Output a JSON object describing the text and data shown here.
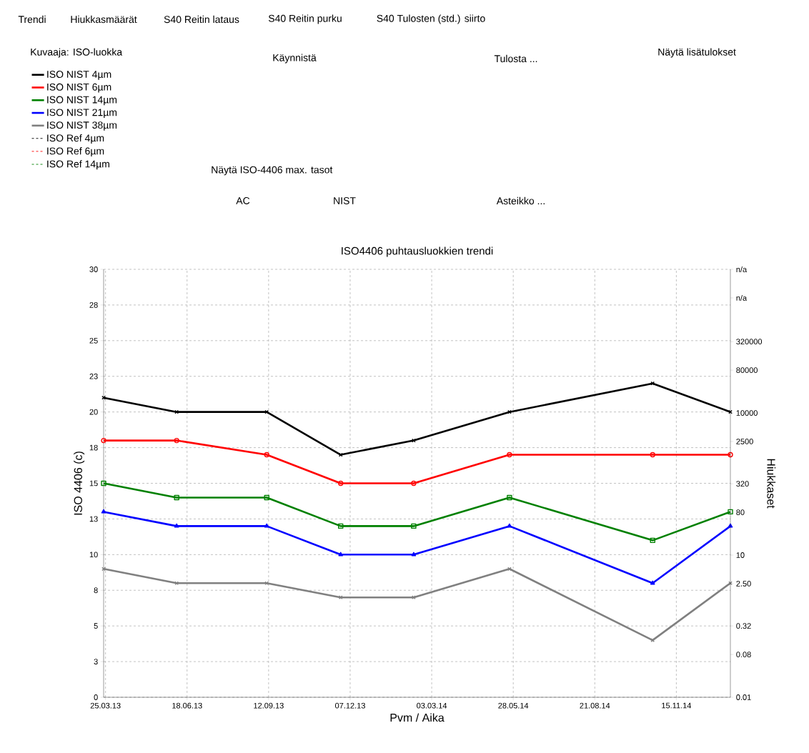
{
  "chart_data": {
    "type": "line",
    "title": "ISO4406 puhtausluokkien trendi",
    "xlabel": "Pvm / Aika",
    "ylabel": "ISO 4406 (c)",
    "y2label": "Hiukkaset",
    "x": [
      "2013-03-23",
      "2013-06-08",
      "2013-09-11",
      "2013-11-28",
      "2014-02-13",
      "2014-05-25",
      "2014-10-23",
      "2015-01-13"
    ],
    "series": [
      {
        "name": "ISO NIST 4µm",
        "color": "#000000",
        "marker": "cross",
        "line_style": "solid",
        "values": [
          21,
          20,
          20,
          17,
          18,
          20,
          22,
          20
        ]
      },
      {
        "name": "ISO NIST 6µm",
        "color": "#ff0000",
        "marker": "circle",
        "line_style": "solid",
        "values": [
          18,
          18,
          17,
          15,
          15,
          17,
          17,
          17
        ]
      },
      {
        "name": "ISO NIST 14µm",
        "color": "#008000",
        "marker": "square",
        "line_style": "solid",
        "values": [
          15,
          14,
          14,
          12,
          12,
          14,
          11,
          13
        ]
      },
      {
        "name": "ISO NIST 21µm",
        "color": "#0000ff",
        "marker": "triangle",
        "line_style": "solid",
        "values": [
          13,
          12,
          12,
          10,
          10,
          12,
          8,
          12
        ]
      },
      {
        "name": "ISO NIST 38µm",
        "color": "#808080",
        "marker": "cross",
        "line_style": "solid",
        "values": [
          9,
          8,
          8,
          7,
          7,
          9,
          4,
          8
        ]
      },
      {
        "name": "ISO Ref 4µm",
        "color": "#000000",
        "marker": "none",
        "line_style": "dashed",
        "values": [
          null,
          null,
          null,
          null,
          null,
          null,
          null,
          null
        ]
      },
      {
        "name": "ISO Ref 6µm",
        "color": "#ff0000",
        "marker": "none",
        "line_style": "dashed",
        "values": [
          null,
          null,
          null,
          null,
          null,
          null,
          null,
          null
        ]
      },
      {
        "name": "ISO Ref 14µm",
        "color": "#008000",
        "marker": "none",
        "line_style": "dashed",
        "values": [
          null,
          null,
          null,
          null,
          null,
          null,
          null,
          null
        ]
      }
    ],
    "xlim": [
      "2013-03-23",
      "2015-01-13"
    ],
    "xticks": [
      {
        "value": "2013-03-25",
        "label": "25.03.13"
      },
      {
        "value": "2013-06-19",
        "label": "18.06.13"
      },
      {
        "value": "2013-09-13",
        "label": "12.09.13"
      },
      {
        "value": "2013-12-08",
        "label": "07.12.13"
      },
      {
        "value": "2014-03-04",
        "label": "03.03.14"
      },
      {
        "value": "2014-05-29",
        "label": "28.05.14"
      },
      {
        "value": "2014-08-23",
        "label": "21.08.14"
      },
      {
        "value": "2014-11-17",
        "label": "15.11.14"
      }
    ],
    "ylim": [
      0,
      30
    ],
    "yticks": [
      0,
      {
        "value": 2.5,
        "label": "3"
      },
      5,
      {
        "value": 7.5,
        "label": "8"
      },
      10,
      {
        "value": 12.5,
        "label": "13"
      },
      15,
      {
        "value": 17.5,
        "label": "18"
      },
      20,
      {
        "value": 22.5,
        "label": "23"
      },
      25,
      {
        "value": 27.5,
        "label": "28"
      },
      30
    ],
    "y2lim": [
      0.01,
      10737418.24
    ],
    "y2ticks": [
      0.01,
      0.08,
      0.32,
      {
        "value": 2.5,
        "label": "2.50"
      },
      10,
      80,
      320,
      2500,
      10000,
      80000,
      320000,
      {
        "value": 2684354.56,
        "label": "n/a"
      },
      {
        "value": 10737418.24,
        "label": "n/a"
      }
    ],
    "log": "y2",
    "grid": true,
    "legend": "top left",
    "annotations": [
      "Trendi",
      "Hiukkasmäärät",
      "S40 Reitin lataus",
      "S40 Reitin purku",
      "S40 Tulosten (std.) siirto",
      "Kuvaaja: ISO-luokka",
      "Käynnistä",
      "Tulosta ...",
      "Näytä lisätulokset",
      "Näytä ISO-4406 max. tasot",
      "AC",
      "NIST",
      "Asteikko ..."
    ]
  }
}
